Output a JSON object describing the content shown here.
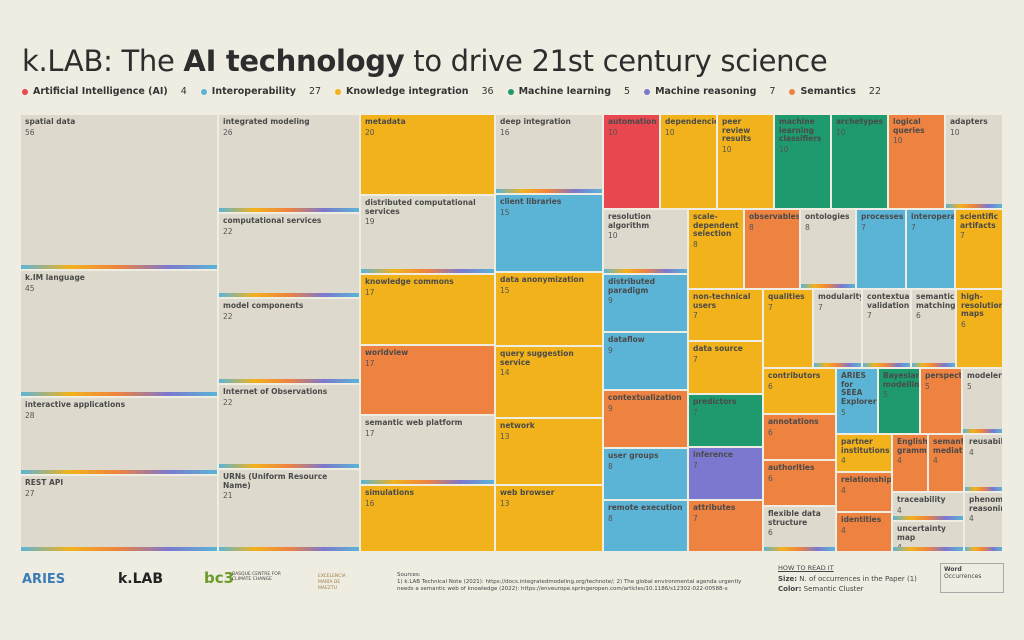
{
  "chart_data": {
    "type": "treemap",
    "title": [
      "k.LAB: The ",
      "AI technology",
      " to drive 21st century science"
    ],
    "legend": [
      {
        "name": "Artificial Intelligence (AI)",
        "count": 4,
        "color": "#e8474f"
      },
      {
        "name": "Interoperability",
        "count": 27,
        "color": "#5bb4d6"
      },
      {
        "name": "Knowledge integration",
        "count": 36,
        "color": "#f2b21b"
      },
      {
        "name": "Machine learning",
        "count": 5,
        "color": "#1f9a6e"
      },
      {
        "name": "Machine reasoning",
        "count": 7,
        "color": "#7b78cf"
      },
      {
        "name": "Semantics",
        "count": 22,
        "color": "#ee8240"
      }
    ],
    "items": [
      {
        "name": "spatial data",
        "value": 56,
        "color": "#ddd9cc"
      },
      {
        "name": "k.IM language",
        "value": 45,
        "color": "#ddd9cc"
      },
      {
        "name": "interactive applications",
        "value": 28,
        "color": "#ddd9cc"
      },
      {
        "name": "REST API",
        "value": 27,
        "color": "#ddd9cc"
      },
      {
        "name": "integrated modeling",
        "value": 26,
        "color": "#ddd9cc"
      },
      {
        "name": "computational services",
        "value": 22,
        "color": "#ddd9cc"
      },
      {
        "name": "model components",
        "value": 22,
        "color": "#ddd9cc"
      },
      {
        "name": "Internet of Observations",
        "value": 22,
        "color": "#ddd9cc"
      },
      {
        "name": "URNs (Uniform Resource Name)",
        "value": 21,
        "color": "#ddd9cc"
      },
      {
        "name": "metadata",
        "value": 20,
        "color": "#f2b21b"
      },
      {
        "name": "distributed computational services",
        "value": 19,
        "color": "#ddd9cc"
      },
      {
        "name": "knowledge commons",
        "value": 17,
        "color": "#f2b21b"
      },
      {
        "name": "worldview",
        "value": 17,
        "color": "#ee8240"
      },
      {
        "name": "semantic web platform",
        "value": 17,
        "color": "#ddd9cc"
      },
      {
        "name": "simulations",
        "value": 16,
        "color": "#f2b21b"
      },
      {
        "name": "deep integration",
        "value": 16,
        "color": "#ddd9cc"
      },
      {
        "name": "client libraries",
        "value": 15,
        "color": "#5bb4d6"
      },
      {
        "name": "data anonymization",
        "value": 15,
        "color": "#f2b21b"
      },
      {
        "name": "query suggestion service",
        "value": 14,
        "color": "#f2b21b"
      },
      {
        "name": "network",
        "value": 13,
        "color": "#f2b21b"
      },
      {
        "name": "web browser",
        "value": 13,
        "color": "#f2b21b"
      },
      {
        "name": "automation",
        "value": 10,
        "color": "#e8474f"
      },
      {
        "name": "dependencies",
        "value": 10,
        "color": "#f2b21b"
      },
      {
        "name": "peer review results",
        "value": 10,
        "color": "#f2b21b"
      },
      {
        "name": "machine learning classifiers",
        "value": 10,
        "color": "#1f9a6e"
      },
      {
        "name": "archetypes",
        "value": 10,
        "color": "#1f9a6e"
      },
      {
        "name": "logical queries",
        "value": 10,
        "color": "#ee8240"
      },
      {
        "name": "adapters",
        "value": 10,
        "color": "#ddd9cc"
      },
      {
        "name": "resolution algorithm",
        "value": 10,
        "color": "#ddd9cc"
      },
      {
        "name": "distributed paradigm",
        "value": 9,
        "color": "#5bb4d6"
      },
      {
        "name": "dataflow",
        "value": 9,
        "color": "#5bb4d6"
      },
      {
        "name": "contextualization",
        "value": 9,
        "color": "#ee8240"
      },
      {
        "name": "user groups",
        "value": 8,
        "color": "#5bb4d6"
      },
      {
        "name": "remote execution",
        "value": 8,
        "color": "#5bb4d6"
      },
      {
        "name": "scale-dependent selection",
        "value": 8,
        "color": "#f2b21b"
      },
      {
        "name": "observables",
        "value": 8,
        "color": "#ee8240"
      },
      {
        "name": "ontologies",
        "value": 8,
        "color": "#ddd9cc"
      },
      {
        "name": "processes",
        "value": 7,
        "color": "#5bb4d6"
      },
      {
        "name": "interoperability",
        "value": 7,
        "color": "#5bb4d6"
      },
      {
        "name": "scientific artifacts",
        "value": 7,
        "color": "#f2b21b"
      },
      {
        "name": "non-technical users",
        "value": 7,
        "color": "#f2b21b"
      },
      {
        "name": "data source",
        "value": 7,
        "color": "#f2b21b"
      },
      {
        "name": "predictors",
        "value": 7,
        "color": "#1f9a6e"
      },
      {
        "name": "inference",
        "value": 7,
        "color": "#7b78cf"
      },
      {
        "name": "attributes",
        "value": 7,
        "color": "#ee8240"
      },
      {
        "name": "qualities",
        "value": 7,
        "color": "#f2b21b"
      },
      {
        "name": "modularity",
        "value": 7,
        "color": "#ddd9cc"
      },
      {
        "name": "contextual validation",
        "value": 7,
        "color": "#ddd9cc"
      },
      {
        "name": "semantic matching",
        "value": 6,
        "color": "#ddd9cc"
      },
      {
        "name": "high-resolution maps",
        "value": 6,
        "color": "#f2b21b"
      },
      {
        "name": "contributors",
        "value": 6,
        "color": "#f2b21b"
      },
      {
        "name": "annotations",
        "value": 6,
        "color": "#ee8240"
      },
      {
        "name": "authorities",
        "value": 6,
        "color": "#ee8240"
      },
      {
        "name": "flexible data structure",
        "value": 6,
        "color": "#ddd9cc"
      },
      {
        "name": "ARIES for SEEA Explorer",
        "value": 5,
        "color": "#5bb4d6"
      },
      {
        "name": "Bayesian modelling",
        "value": 5,
        "color": "#1f9a6e"
      },
      {
        "name": "perspectives",
        "value": 5,
        "color": "#ee8240"
      },
      {
        "name": "modelers",
        "value": 5,
        "color": "#ddd9cc"
      },
      {
        "name": "partner institutions",
        "value": 4,
        "color": "#f2b21b"
      },
      {
        "name": "relationships",
        "value": 4,
        "color": "#ee8240"
      },
      {
        "name": "identities",
        "value": 4,
        "color": "#ee8240"
      },
      {
        "name": "English grammar",
        "value": 4,
        "color": "#ee8240"
      },
      {
        "name": "semantic mediation",
        "value": 4,
        "color": "#ee8240"
      },
      {
        "name": "reusability",
        "value": 4,
        "color": "#ddd9cc"
      },
      {
        "name": "traceability",
        "value": 4,
        "color": "#ddd9cc"
      },
      {
        "name": "uncertainty map",
        "value": 4,
        "color": "#ddd9cc"
      },
      {
        "name": "phenomenological reasoning",
        "value": 4,
        "color": "#ddd9cc"
      }
    ]
  },
  "footer": {
    "logos": [
      "ARIES",
      "k.LAB",
      "bc3",
      "BASQUE CENTRE FOR CLIMATE CHANGE",
      "EXCELENCIA MARÍA DE MAEZTU"
    ],
    "sources_heading": "Sources:",
    "sources": "1) k.LAB Technical Note (2021): https://docs.integratedmodeling.org/technote/; 2) The global environmental agenda urgently needs a semantic web of knowledge (2022): https://enveurope.springeropen.com/articles/10.1186/s12302-022-00588-x",
    "how_to_read": "HOW TO READ IT",
    "size_label": "Size:",
    "size_text": "N. of occurrences in the Paper (1)",
    "color_label": "Color:",
    "color_text": "Semantic Cluster",
    "key_word": "Word",
    "key_occurrences": "Occurrences"
  }
}
